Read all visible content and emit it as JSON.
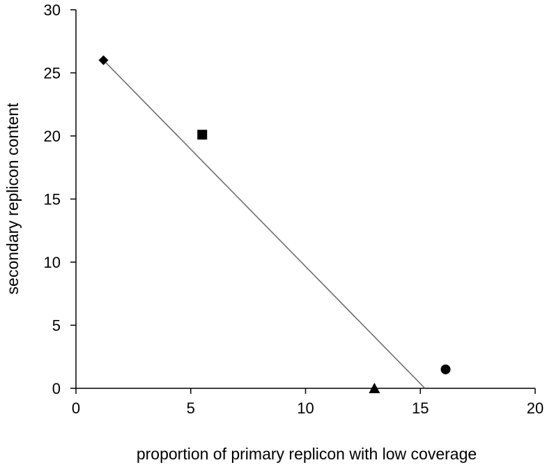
{
  "chart_data": {
    "type": "scatter",
    "title": "",
    "xlabel": "proportion of primary replicon with low coverage",
    "ylabel": "secondary replicon content",
    "xlim": [
      0,
      20
    ],
    "ylim": [
      0,
      30
    ],
    "xticks": [
      0,
      5,
      10,
      15,
      20
    ],
    "yticks": [
      0,
      5,
      10,
      15,
      20,
      25,
      30
    ],
    "xtick_labels": [
      "0",
      "5",
      "10",
      "15",
      "20"
    ],
    "ytick_labels": [
      "0",
      "5",
      "10",
      "15",
      "20",
      "25",
      "30"
    ],
    "grid": false,
    "legend": "none",
    "points": [
      {
        "x": 1.2,
        "y": 26.0,
        "marker": "diamond"
      },
      {
        "x": 5.5,
        "y": 20.1,
        "marker": "square"
      },
      {
        "x": 13.0,
        "y": 0.0,
        "marker": "triangle"
      },
      {
        "x": 16.1,
        "y": 1.5,
        "marker": "circle"
      }
    ],
    "trendline": {
      "x": [
        1.2,
        15.2
      ],
      "y": [
        26.0,
        0.0
      ]
    },
    "colors": {
      "marker": "#000000",
      "axis": "#000000",
      "trendline": "#666666"
    }
  }
}
